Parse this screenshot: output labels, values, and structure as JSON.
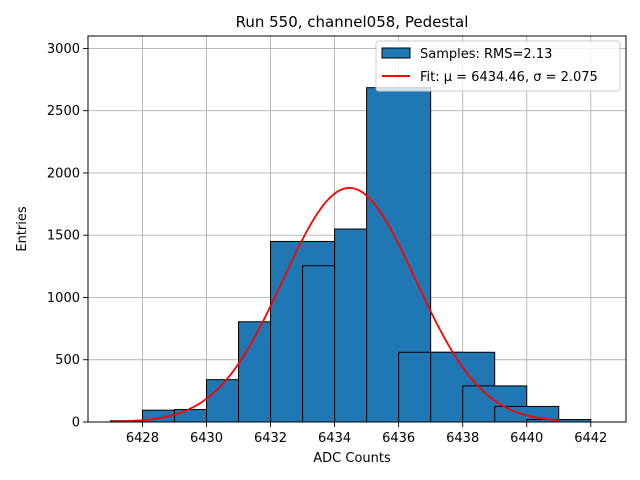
{
  "chart_data": {
    "type": "bar",
    "title": "Run 550, channel058, Pedestal",
    "xlabel": "ADC Counts",
    "ylabel": "Entries",
    "xlim": [
      6426.3,
      6443.1
    ],
    "ylim": [
      0,
      3100
    ],
    "grid": true,
    "xticks": [
      6428,
      6430,
      6432,
      6434,
      6436,
      6438,
      6440,
      6442
    ],
    "yticks": [
      0,
      500,
      1000,
      1500,
      2000,
      2500,
      3000
    ],
    "histogram": {
      "bin_width": 2,
      "bins": [
        {
          "left": 6427,
          "count": 10
        },
        {
          "left": 6428,
          "count": 95
        },
        {
          "left": 6429,
          "count": 100
        },
        {
          "left": 6430,
          "count": 340
        },
        {
          "left": 6431,
          "count": 805
        },
        {
          "left": 6432,
          "count": 1450
        },
        {
          "left": 6433,
          "count": 1255
        },
        {
          "left": 6434,
          "count": 1550
        },
        {
          "left": 6435,
          "count": 2685
        },
        {
          "left": 6436,
          "count": 560
        },
        {
          "left": 6437,
          "count": 560
        },
        {
          "left": 6438,
          "count": 290
        },
        {
          "left": 6439,
          "count": 125
        },
        {
          "left": 6440,
          "count": 20
        }
      ],
      "color": "#1f77b4"
    },
    "fit": {
      "mu": 6434.46,
      "sigma": 2.075,
      "amplitude": 1880,
      "x_range": [
        6427,
        6441
      ],
      "color": "#ff0000"
    },
    "legend": {
      "position": "top-right",
      "entries": [
        {
          "label": "Samples: RMS=2.13",
          "kind": "patch",
          "color": "#1f77b4"
        },
        {
          "label": "Fit: μ = 6434.46, σ = 2.075",
          "kind": "line",
          "color": "#ff0000"
        }
      ]
    }
  }
}
